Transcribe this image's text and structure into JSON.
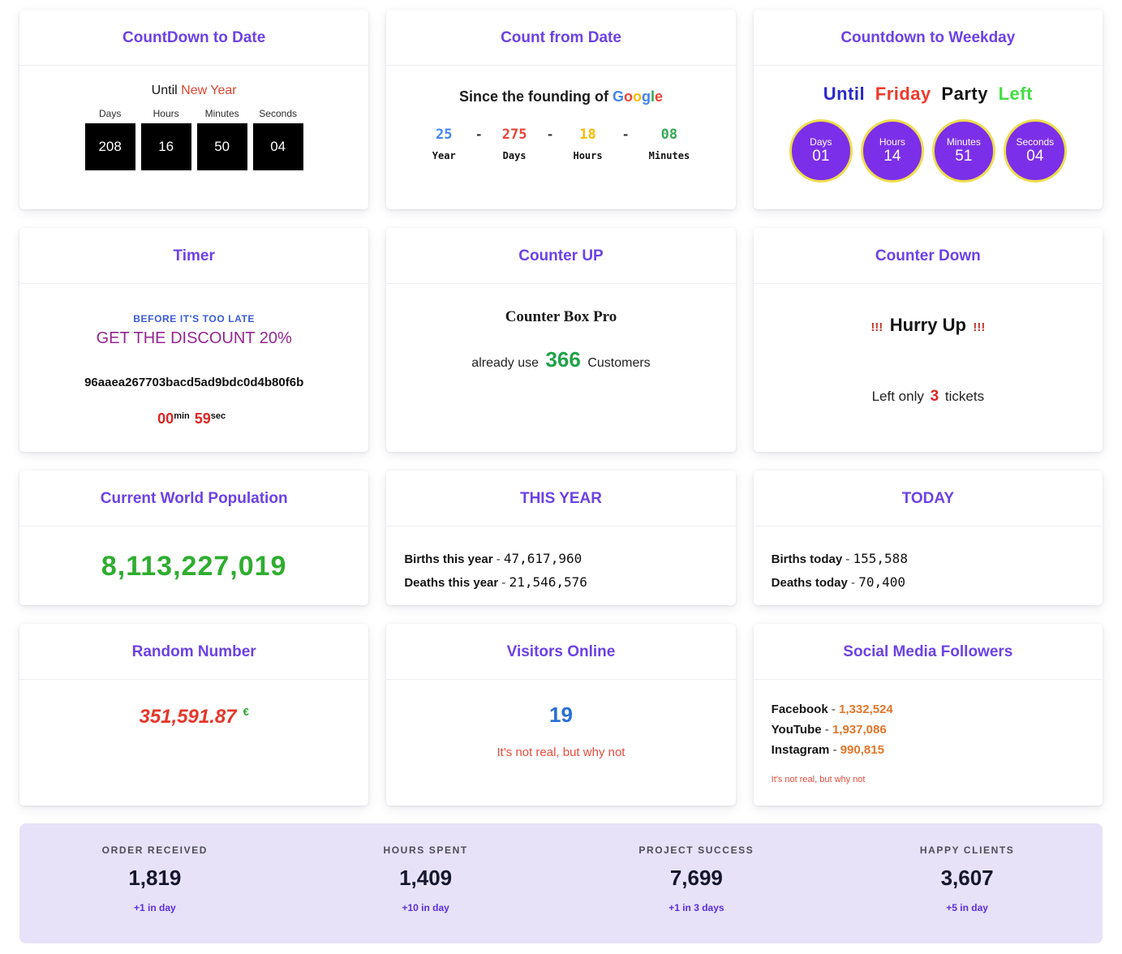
{
  "theme": {
    "title_color": "#6b42e6",
    "card_bg": "#ffffff",
    "stats_bg": "#e7e2f8"
  },
  "cards": {
    "countdown_to_date": {
      "title": "CountDown to Date",
      "prefix": "Until",
      "event": "New Year",
      "event_color": "#e0452e",
      "units": [
        {
          "label": "Days",
          "value": "208"
        },
        {
          "label": "Hours",
          "value": "16"
        },
        {
          "label": "Minutes",
          "value": "50"
        },
        {
          "label": "Seconds",
          "value": "04"
        }
      ]
    },
    "count_from_date": {
      "title": "Count from Date",
      "heading_prefix": "Since the founding of",
      "brand": {
        "name": "Google",
        "letters": [
          {
            "char": "G",
            "color": "#4285F4"
          },
          {
            "char": "o",
            "color": "#EA4335"
          },
          {
            "char": "o",
            "color": "#FBBC05"
          },
          {
            "char": "g",
            "color": "#4285F4"
          },
          {
            "char": "l",
            "color": "#34A853"
          },
          {
            "char": "e",
            "color": "#EA4335"
          }
        ]
      },
      "separator": "-",
      "units": [
        {
          "label": "Year",
          "value": "25",
          "color": "#4285F4"
        },
        {
          "label": "Days",
          "value": "275",
          "color": "#EA4335"
        },
        {
          "label": "Hours",
          "value": "18",
          "color": "#FBBC05"
        },
        {
          "label": "Minutes",
          "value": "08",
          "color": "#34A853"
        }
      ]
    },
    "countdown_to_weekday": {
      "title": "Countdown to Weekday",
      "heading_words": [
        {
          "text": "Until",
          "color": "#2a2ac8"
        },
        {
          "text": "Friday",
          "color": "#ee3a2c"
        },
        {
          "text": "Party",
          "color": "#141414"
        },
        {
          "text": "Left",
          "color": "#44dd44"
        }
      ],
      "circle_color": "#7c2fe8",
      "ring_color": "#eedd4e",
      "units": [
        {
          "label": "Days",
          "value": "01"
        },
        {
          "label": "Hours",
          "value": "14"
        },
        {
          "label": "Minutes",
          "value": "51"
        },
        {
          "label": "Seconds",
          "value": "04"
        }
      ]
    },
    "timer": {
      "title": "Timer",
      "eyebrow": "BEFORE IT'S TOO LATE",
      "headline": "GET THE DISCOUNT 20%",
      "code": "96aaea267703bacd5ad9bdc0d4b80f6b",
      "minutes": "00",
      "minutes_label": "min",
      "seconds": "59",
      "seconds_label": "sec"
    },
    "counter_up": {
      "title": "Counter UP",
      "product": "Counter Box Pro",
      "prefix": "already use",
      "count": "366",
      "count_color": "#21a24b",
      "suffix": "Customers"
    },
    "counter_down": {
      "title": "Counter Down",
      "bang": "!!!",
      "headline": "Hurry Up",
      "left_prefix": "Left only",
      "left_count": "3",
      "left_count_color": "#e02424",
      "left_suffix": "tickets"
    },
    "world_population": {
      "title": "Current World Population",
      "value": "8,113,227,019",
      "value_color": "#2fad30"
    },
    "this_year": {
      "title": "THIS YEAR",
      "rows": [
        {
          "label": "Births this year",
          "dash": "-",
          "value": "47,617,960"
        },
        {
          "label": "Deaths this year",
          "dash": "-",
          "value": "21,546,576"
        }
      ]
    },
    "today": {
      "title": "TODAY",
      "rows": [
        {
          "label": "Births today",
          "dash": "-",
          "value": "155,588"
        },
        {
          "label": "Deaths today",
          "dash": "-",
          "value": "70,400"
        }
      ]
    },
    "random_number": {
      "title": "Random Number",
      "value": "351,591.87",
      "value_color": "#e4372c",
      "currency": "€",
      "currency_color": "#27a82c"
    },
    "visitors_online": {
      "title": "Visitors Online",
      "count": "19",
      "count_color": "#2a6fd4",
      "note": "It's not real, but why not"
    },
    "social_media": {
      "title": "Social Media Followers",
      "value_color": "#e2762a",
      "rows": [
        {
          "label": "Facebook",
          "dash": "-",
          "value": "1,332,524"
        },
        {
          "label": "YouTube",
          "dash": "-",
          "value": "1,937,086"
        },
        {
          "label": "Instagram",
          "dash": "-",
          "value": "990,815"
        }
      ],
      "note": "It's not real, but why not"
    }
  },
  "stats_bar": {
    "items": [
      {
        "label": "ORDER RECEIVED",
        "value": "1,819",
        "delta": "+1 in day"
      },
      {
        "label": "HOURS SPENT",
        "value": "1,409",
        "delta": "+10 in day"
      },
      {
        "label": "PROJECT SUCCESS",
        "value": "7,699",
        "delta": "+1 in 3 days"
      },
      {
        "label": "HAPPY CLIENTS",
        "value": "3,607",
        "delta": "+5 in day"
      }
    ]
  }
}
